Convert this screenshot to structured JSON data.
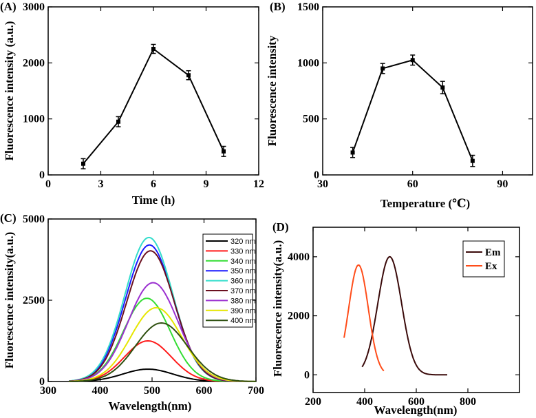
{
  "chart_data": [
    {
      "id": "A",
      "panel_label": "(A)",
      "type": "line",
      "xlabel": "Time (h)",
      "ylabel": "Fluorescence intensity (a.u.)",
      "xlim": [
        0,
        12
      ],
      "ylim": [
        0,
        3000
      ],
      "xticks": [
        0,
        3,
        6,
        9,
        12
      ],
      "yticks": [
        0,
        1000,
        2000,
        3000
      ],
      "xtick_labels": [
        "0",
        "3",
        "6",
        "9",
        "12"
      ],
      "ytick_labels": [
        "0",
        "1000",
        "2000",
        "3000"
      ],
      "x": [
        2,
        4,
        6,
        8,
        10
      ],
      "values": [
        200,
        950,
        2250,
        1780,
        420
      ],
      "errors": [
        90,
        90,
        80,
        80,
        90
      ],
      "color": "#000000"
    },
    {
      "id": "B",
      "panel_label": "(B)",
      "type": "line",
      "xlabel": "Temperature (℃)",
      "ylabel": "Fluorescence intensity",
      "xlim": [
        30,
        100
      ],
      "ylim": [
        0,
        1500
      ],
      "xticks": [
        30,
        60,
        90
      ],
      "yticks": [
        0,
        500,
        1000,
        1500
      ],
      "xtick_labels": [
        "30",
        "60",
        "90"
      ],
      "ytick_labels": [
        "0",
        "500",
        "1000",
        "1500"
      ],
      "x": [
        40,
        50,
        60,
        70,
        80
      ],
      "values": [
        200,
        950,
        1025,
        780,
        125
      ],
      "errors": [
        45,
        45,
        45,
        55,
        50
      ],
      "color": "#000000"
    },
    {
      "id": "C",
      "panel_label": "(C)",
      "type": "line",
      "xlabel": "Wavelength(nm)",
      "ylabel": "Fluorescence intensity(a.u.)",
      "xlim": [
        300,
        700
      ],
      "ylim": [
        0,
        5000
      ],
      "xticks": [
        300,
        400,
        500,
        600,
        700
      ],
      "yticks": [
        0,
        2500,
        5000
      ],
      "xtick_labels": [
        "300",
        "400",
        "500",
        "600",
        "700"
      ],
      "ytick_labels": [
        "0",
        "2500",
        "5000"
      ],
      "series": [
        {
          "name": "320 nm",
          "color": "#000000",
          "peak": 380,
          "center": 492,
          "width": 48
        },
        {
          "name": "330 nm",
          "color": "#ff1a1a",
          "peak": 1250,
          "center": 492,
          "width": 45
        },
        {
          "name": "340 nm",
          "color": "#33dd33",
          "peak": 2560,
          "center": 490,
          "width": 45
        },
        {
          "name": "350 nm",
          "color": "#1a1aff",
          "peak": 4200,
          "center": 495,
          "width": 46
        },
        {
          "name": "360 nm",
          "color": "#33ddcc",
          "peak": 4430,
          "center": 494,
          "width": 46
        },
        {
          "name": "370 nm",
          "color": "#6b1020",
          "peak": 4020,
          "center": 497,
          "width": 46
        },
        {
          "name": "380 nm",
          "color": "#9b30d0",
          "peak": 3040,
          "center": 502,
          "width": 48
        },
        {
          "name": "390 nm",
          "color": "#e6e600",
          "peak": 2270,
          "center": 508,
          "width": 49
        },
        {
          "name": "400 nm",
          "color": "#2f5010",
          "peak": 1800,
          "center": 518,
          "width": 50
        }
      ]
    },
    {
      "id": "D",
      "panel_label": "(D)",
      "type": "line",
      "xlabel": "Wavelength(nm)",
      "ylabel": "Fluorescence intensity(a.u.)",
      "xlim": [
        200,
        1000
      ],
      "ylim": [
        -600,
        5000
      ],
      "xticks": [
        200,
        400,
        600,
        800
      ],
      "yticks": [
        0,
        2000,
        4000
      ],
      "xtick_labels": [
        "200",
        "400",
        "600",
        "800"
      ],
      "ytick_labels": [
        "0",
        "2000",
        "4000"
      ],
      "series": [
        {
          "name": "Em",
          "color": "#3a0a0a",
          "x_start": 390,
          "x_end": 720,
          "peak": 4000,
          "center": 497,
          "width": 46
        },
        {
          "name": "Ex",
          "color": "#ff4d1a",
          "x_start": 320,
          "x_end": 475,
          "peak": 3720,
          "center": 376,
          "width": 38
        }
      ]
    }
  ]
}
